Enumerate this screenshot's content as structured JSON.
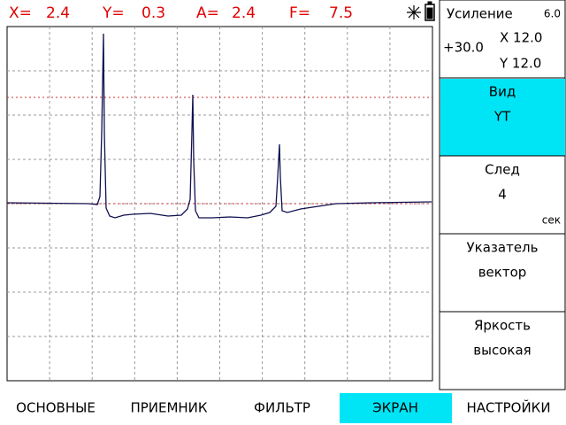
{
  "status_bar": {
    "readouts": [
      {
        "label": "X=",
        "value": "2.4"
      },
      {
        "label": "Y=",
        "value": "0.3"
      },
      {
        "label": "A=",
        "value": "2.4"
      },
      {
        "label": "F=",
        "value": "7.5"
      }
    ]
  },
  "side_panel": {
    "gain": {
      "title": "Усиление",
      "step": "6.0",
      "value": "+30.0",
      "x": "X 12.0",
      "y": "Y 12.0"
    },
    "items": [
      {
        "title": "Вид",
        "value": "YT",
        "selected": true
      },
      {
        "title": "След",
        "value": "4",
        "unit": "сек"
      },
      {
        "title": "Указатель",
        "value": "вектор"
      },
      {
        "title": "Яркость",
        "value": "высокая"
      }
    ]
  },
  "menu": {
    "tabs": [
      "ОСНОВНЫЕ",
      "ПРИЕМНИК",
      "ФИЛЬТР",
      "ЭКРАН",
      "НАСТРОЙКИ"
    ],
    "active_tab": 3
  }
}
